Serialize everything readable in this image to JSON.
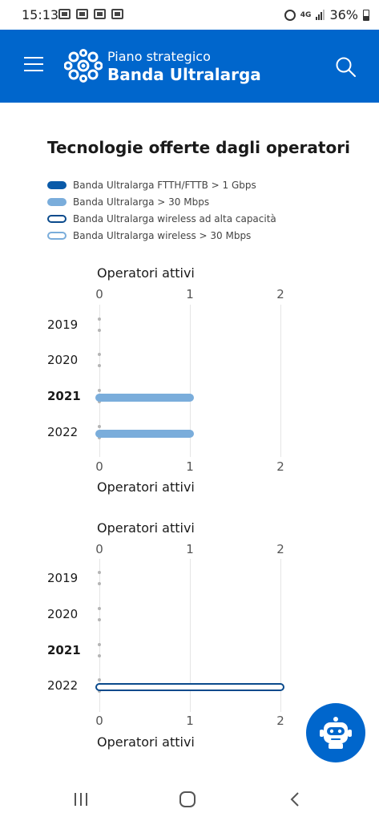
{
  "status_bar": {
    "time": "15:13",
    "network": "4G",
    "battery": "36%"
  },
  "header": {
    "brand_subtitle": "Piano strategico",
    "brand_title": "Banda Ultralarga",
    "menu_icon": "hamburger-menu-icon",
    "search_icon": "search-icon",
    "header_color": "#0066cc"
  },
  "main": {
    "title": "Tecnologie offerte dagli operatori"
  },
  "legend": [
    {
      "label": "Banda Ultralarga FTTH/FTTB > 1 Gbps",
      "color": "#0a5aa8",
      "filled": true
    },
    {
      "label": "Banda Ultralarga > 30 Mbps",
      "color": "#7aaddb",
      "filled": true
    },
    {
      "label": "Banda Ultralarga wireless ad alta capacità",
      "color": "#0a4a8c",
      "filled": false
    },
    {
      "label": "Banda Ultralarga wireless > 30 Mbps",
      "color": "#7aaddb",
      "filled": false
    }
  ],
  "chart_data": [
    {
      "type": "bar",
      "orientation": "horizontal",
      "xlabel": "Operatori attivi",
      "xlim": [
        0,
        2
      ],
      "xticks": [
        "0",
        "1",
        "2"
      ],
      "categories": [
        "2019",
        "2020",
        "2021",
        "2022"
      ],
      "bold_category": "2021",
      "series": [
        {
          "name": "Banda Ultralarga > 30 Mbps",
          "values": [
            0,
            0,
            1,
            1
          ],
          "color": "#7aaddb",
          "filled": true
        }
      ]
    },
    {
      "type": "bar",
      "orientation": "horizontal",
      "xlabel": "Operatori attivi",
      "xlim": [
        0,
        2
      ],
      "xticks": [
        "0",
        "1",
        "2"
      ],
      "categories": [
        "2019",
        "2020",
        "2021",
        "2022"
      ],
      "bold_category": "2021",
      "series": [
        {
          "name": "Banda Ultralarga wireless ad alta capacità",
          "values": [
            0,
            0,
            0,
            2
          ],
          "color": "#0a4a8c",
          "filled": false
        }
      ]
    }
  ],
  "fab": {
    "icon": "robot-assistant-icon"
  },
  "nav": {
    "recent_icon": "recent-apps-icon",
    "home_icon": "home-icon",
    "back_icon": "back-icon"
  }
}
